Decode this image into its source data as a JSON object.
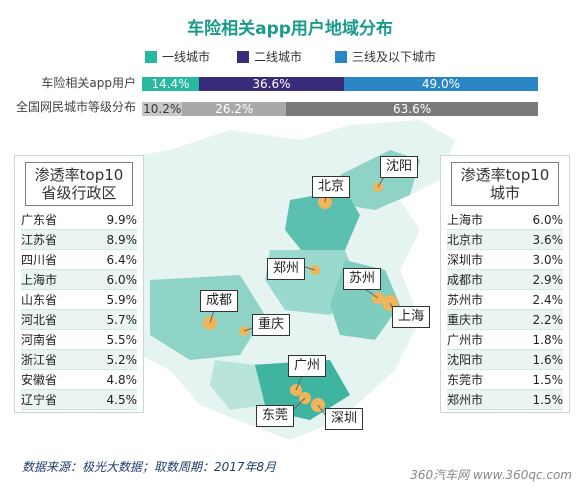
{
  "title": "车险相关app用户地域分布",
  "legend": [
    {
      "label": "一线城市",
      "color": "#27b9a0"
    },
    {
      "label": "二线城市",
      "color": "#3a2a7a"
    },
    {
      "label": "三线及以下城市",
      "color": "#2a86c4"
    }
  ],
  "bars": {
    "rows": [
      {
        "label": "车险相关app用户",
        "values": [
          14.4,
          36.6,
          49.0
        ],
        "texts": [
          "14.4%",
          "36.6%",
          "49.0%"
        ]
      },
      {
        "label": "全国网民城市等级分布",
        "values": [
          10.2,
          26.2,
          63.6
        ],
        "texts": [
          "10.2%",
          "26.2%",
          "63.6%"
        ]
      }
    ],
    "second_row_colors": [
      "#c8c8c8",
      "#a9a9a9",
      "#7a7a7a"
    ]
  },
  "province_panel": {
    "title_line1": "渗透率top10",
    "title_line2": "省级行政区",
    "items": [
      {
        "name": "广东省",
        "value": "9.9%"
      },
      {
        "name": "江苏省",
        "value": "8.9%"
      },
      {
        "name": "四川省",
        "value": "6.4%"
      },
      {
        "name": "上海市",
        "value": "6.0%"
      },
      {
        "name": "山东省",
        "value": "5.9%"
      },
      {
        "name": "河北省",
        "value": "5.7%"
      },
      {
        "name": "河南省",
        "value": "5.5%"
      },
      {
        "name": "浙江省",
        "value": "5.2%"
      },
      {
        "name": "安徽省",
        "value": "4.8%"
      },
      {
        "name": "辽宁省",
        "value": "4.5%"
      }
    ]
  },
  "city_panel": {
    "title_line1": "渗透率top10",
    "title_line2": "城市",
    "items": [
      {
        "name": "上海市",
        "value": "6.0%"
      },
      {
        "name": "北京市",
        "value": "3.6%"
      },
      {
        "name": "深圳市",
        "value": "3.0%"
      },
      {
        "name": "成都市",
        "value": "2.9%"
      },
      {
        "name": "苏州市",
        "value": "2.4%"
      },
      {
        "name": "重庆市",
        "value": "2.2%"
      },
      {
        "name": "广州市",
        "value": "1.8%"
      },
      {
        "name": "沈阳市",
        "value": "1.6%"
      },
      {
        "name": "东莞市",
        "value": "1.5%"
      },
      {
        "name": "郑州市",
        "value": "1.5%"
      }
    ]
  },
  "map_labels": [
    "沈阳",
    "北京",
    "郑州",
    "苏州",
    "成都",
    "重庆",
    "上海",
    "广州",
    "东莞",
    "深圳"
  ],
  "footer": "数据来源：极光大数据；取数周期：2017年8月",
  "watermark": "360汽车网 www.360qc.com",
  "chart_data": {
    "type": "bar",
    "title": "车险相关app用户地域分布",
    "categories": [
      "车险相关app用户",
      "全国网民城市等级分布"
    ],
    "series": [
      {
        "name": "一线城市",
        "values": [
          14.4,
          10.2
        ]
      },
      {
        "name": "二线城市",
        "values": [
          36.6,
          26.2
        ]
      },
      {
        "name": "三线及以下城市",
        "values": [
          49.0,
          63.6
        ]
      }
    ]
  }
}
